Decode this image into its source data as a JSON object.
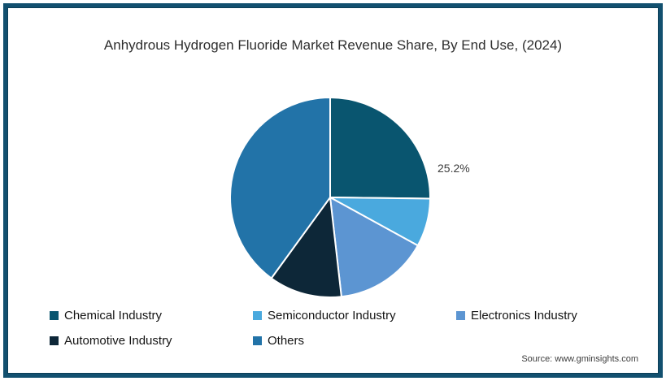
{
  "source": "Source: www.gminsights.com",
  "chart_data": {
    "type": "pie",
    "title": "Anhydrous Hydrogen Fluoride Market Revenue Share, By End Use, (2024)",
    "categories": [
      "Chemical Industry",
      "Semiconductor Industry",
      "Electronics Industry",
      "Automotive Industry",
      "Others"
    ],
    "values": [
      25.2,
      7.8,
      15.2,
      11.8,
      40.0
    ],
    "colors": [
      "#09556f",
      "#4aa9de",
      "#5c95d2",
      "#0d2738",
      "#2273a8"
    ],
    "start_angle_deg": 0,
    "direction": "clockwise",
    "data_labels": [
      {
        "category": "Chemical Industry",
        "label": "25.2%"
      }
    ],
    "legend_position": "bottom",
    "frame_color": "#12506f",
    "slice_divider_color": "#ffffff"
  }
}
